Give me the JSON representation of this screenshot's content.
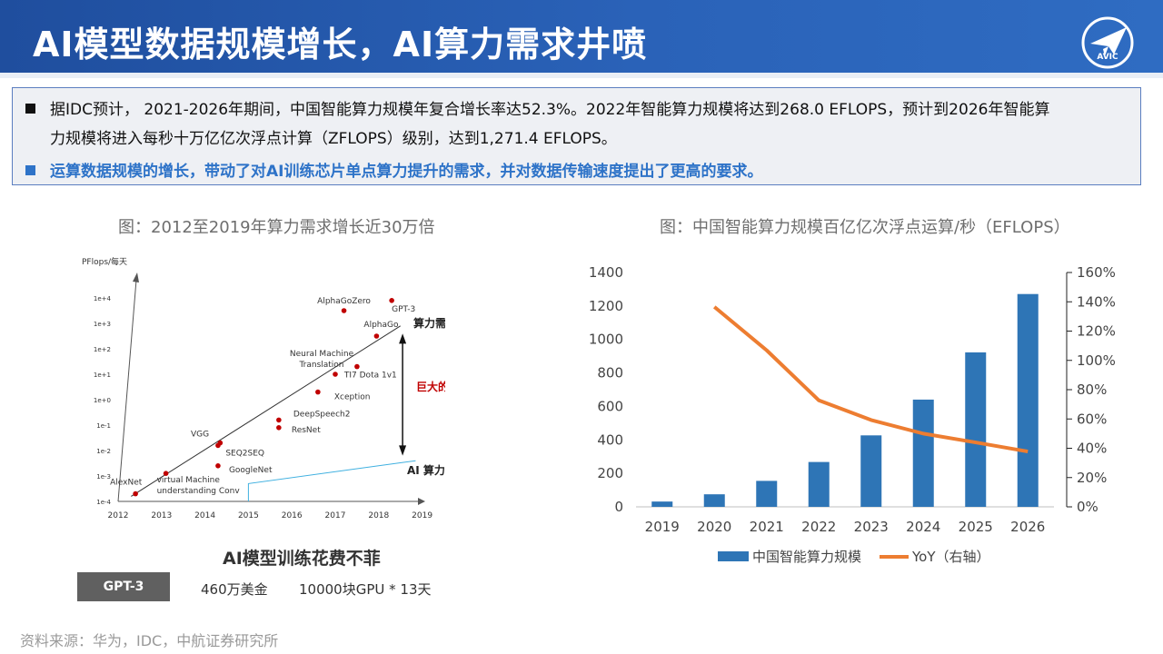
{
  "header": {
    "title": "AI模型数据规模增长，AI算力需求井喷",
    "logo_text": "AVIC"
  },
  "summary": {
    "bullet1_line1": "据IDC预计， 2021-2026年期间，中国智能算力规模年复合增长率达52.3%。2022年智能算力规模将达到268.0 EFLOPS，预计到2026年智能算",
    "bullet1_line2": "力规模将进入每秒十万亿亿次浮点计算（ZFLOPS）级别，达到1,271.4 EFLOPS。",
    "bullet2": "运算数据规模的增长，带动了对AI训练芯片单点算力提升的需求，并对数据传输速度提出了更高的要求。"
  },
  "left_figure": {
    "title": "图：2012至2019年算力需求增长近30万倍"
  },
  "right_figure": {
    "title": "图：中国智能算力规模百亿亿次浮点运算/秒（EFLOPS）"
  },
  "cost": {
    "title": "AI模型训练花费不菲",
    "model": "GPT-3",
    "cost": "460万美金",
    "compute": "10000块GPU * 13天"
  },
  "source": "资料来源：华为，IDC，中航证券研究所",
  "colors": {
    "bar": "#2e75b6",
    "line": "#ed7d31",
    "accent": "#2e73c8",
    "point": "#c00000",
    "gap_text": "#c00000",
    "ai_line": "#3fb0e0"
  },
  "chart_data": [
    {
      "type": "scatter",
      "ylabel": "PFlops/每天",
      "x_ticks": [
        "2012",
        "2013",
        "2014",
        "2015",
        "2016",
        "2017",
        "2018",
        "2019"
      ],
      "y_ticks": [
        "1e-4",
        "1e-3",
        "1e-2",
        "1e-1",
        "1e+0",
        "1e+1",
        "1e+2",
        "1e+3",
        "1e+4"
      ],
      "points": [
        {
          "name": "AlexNet",
          "x": 2012.4,
          "y": -3.7
        },
        {
          "name": "virtual Machine understanding Conv",
          "x": 2013.1,
          "y": -2.9
        },
        {
          "name": "VGG",
          "x": 2014.3,
          "y": -1.8
        },
        {
          "name": "SEQ2SEQ",
          "x": 2014.35,
          "y": -1.7
        },
        {
          "name": "GoogleNet",
          "x": 2014.3,
          "y": -2.6
        },
        {
          "name": "DeepSpeech2",
          "x": 2015.7,
          "y": -0.8
        },
        {
          "name": "ResNet",
          "x": 2015.7,
          "y": -1.1
        },
        {
          "name": "Xception",
          "x": 2016.6,
          "y": 0.3
        },
        {
          "name": "Neural Machine Translation",
          "x": 2017.0,
          "y": 1.0
        },
        {
          "name": "TI7 Dota 1v1",
          "x": 2017.5,
          "y": 1.3
        },
        {
          "name": "AlphaGo",
          "x": 2017.95,
          "y": 2.5
        },
        {
          "name": "AlphaGoZero",
          "x": 2017.2,
          "y": 3.5
        },
        {
          "name": "GPT-3",
          "x": 2018.3,
          "y": 3.9
        }
      ],
      "annotations": {
        "compute_demand": "算力需求",
        "gap": "巨大的GAP",
        "ai_growth": "AI 算力增长速度"
      }
    },
    {
      "type": "bar+line",
      "categories": [
        "2019",
        "2020",
        "2021",
        "2022",
        "2023",
        "2024",
        "2025",
        "2026"
      ],
      "series": [
        {
          "name": "中国智能算力规模",
          "type": "bar",
          "axis": "left",
          "values": [
            31.7,
            75.0,
            155.2,
            268.0,
            427.0,
            640.7,
            922.8,
            1271.4
          ]
        },
        {
          "name": "YoY（右轴）",
          "type": "line",
          "axis": "right",
          "values": [
            null,
            1.365,
            1.069,
            0.727,
            0.593,
            0.5,
            0.44,
            0.378
          ]
        }
      ],
      "y_left": {
        "min": 0,
        "max": 1400,
        "step": 200,
        "ticks": [
          "0",
          "200",
          "400",
          "600",
          "800",
          "1000",
          "1200",
          "1400"
        ]
      },
      "y_right": {
        "min": 0,
        "max": 1.6,
        "step": 0.2,
        "ticks": [
          "0%",
          "20%",
          "40%",
          "60%",
          "80%",
          "100%",
          "120%",
          "140%",
          "160%"
        ]
      }
    }
  ]
}
